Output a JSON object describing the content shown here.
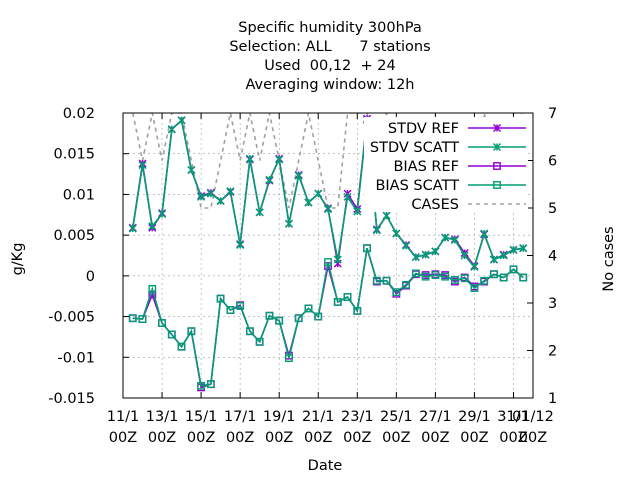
{
  "chart_data": {
    "type": "line",
    "title": [
      "Specific humidity 300hPa",
      "Selection: ALL      7 stations",
      "Used  00,12  + 24",
      "Averaging window: 12h"
    ],
    "xlabel": "Date",
    "ylabel": "g/Kg",
    "y2label": "No cases",
    "xlim": [
      0,
      42
    ],
    "ylim": [
      -0.015,
      0.02
    ],
    "y2lim": [
      1,
      7
    ],
    "yticks": [
      "-0.015",
      "-0.01",
      "-0.005",
      "0",
      "0.005",
      "0.01",
      "0.015",
      "0.02"
    ],
    "y2ticks": [
      "1",
      "2",
      "3",
      "4",
      "5",
      "6",
      "7"
    ],
    "xticks": [
      {
        "x": 0,
        "line1": "11/1",
        "line2": "00Z"
      },
      {
        "x": 4,
        "line1": "13/1",
        "line2": "00Z"
      },
      {
        "x": 8,
        "line1": "15/1",
        "line2": "00Z"
      },
      {
        "x": 12,
        "line1": "17/1",
        "line2": "00Z"
      },
      {
        "x": 16,
        "line1": "19/1",
        "line2": "00Z"
      },
      {
        "x": 20,
        "line1": "21/1",
        "line2": "00Z"
      },
      {
        "x": 24,
        "line1": "23/1",
        "line2": "00Z"
      },
      {
        "x": 28,
        "line1": "25/1",
        "line2": "00Z"
      },
      {
        "x": 32,
        "line1": "27/1",
        "line2": "00Z"
      },
      {
        "x": 36,
        "line1": "29/1",
        "line2": "00Z"
      },
      {
        "x": 40,
        "line1": "31/1",
        "line2": "00Z"
      },
      {
        "x": 42,
        "line1": "01/12",
        "line2": "00Z"
      }
    ],
    "grid": true,
    "legend_position": "top-right",
    "x": [
      1,
      2,
      3,
      4,
      5,
      6,
      7,
      8,
      9,
      10,
      11,
      12,
      13,
      14,
      15,
      16,
      17,
      18,
      19,
      20,
      21,
      22,
      23,
      24,
      25,
      26,
      27,
      28,
      29,
      30,
      31,
      32,
      33,
      34,
      35,
      36,
      37,
      38,
      39,
      40,
      41
    ],
    "series": [
      {
        "name": "STDV REF",
        "axis": "y",
        "color": "#9400d3",
        "marker": "x",
        "dash": false,
        "values": [
          0.0059,
          0.0138,
          0.0059,
          0.0077,
          0.018,
          0.0191,
          0.013,
          0.0098,
          0.0102,
          0.0092,
          0.0103,
          0.0039,
          0.0143,
          0.0078,
          0.0117,
          0.0144,
          0.0064,
          0.0124,
          0.009,
          0.0101,
          0.0083,
          0.0015,
          0.0101,
          0.0082,
          0.0193,
          0.0057,
          0.0074,
          0.0052,
          0.0038,
          0.0023,
          0.0026,
          0.003,
          0.0047,
          0.0045,
          0.0028,
          0.0012,
          0.0051,
          0.002,
          0.0026,
          0.0032,
          0.0034
        ]
      },
      {
        "name": "STDV SCATT",
        "axis": "y",
        "color": "#009e73",
        "marker": "x",
        "dash": false,
        "values": [
          0.0058,
          0.0136,
          0.0061,
          0.0076,
          0.018,
          0.0191,
          0.013,
          0.0097,
          0.0101,
          0.0092,
          0.0104,
          0.0038,
          0.0144,
          0.0078,
          0.0118,
          0.0143,
          0.0064,
          0.0123,
          0.009,
          0.0101,
          0.0082,
          0.002,
          0.0097,
          0.0079,
          0.0191,
          0.0056,
          0.0074,
          0.0052,
          0.0037,
          0.0023,
          0.0026,
          0.003,
          0.0047,
          0.0044,
          0.0025,
          0.0011,
          0.0052,
          0.002,
          0.0025,
          0.0032,
          0.0034
        ]
      },
      {
        "name": "BIAS REF",
        "axis": "y",
        "color": "#9400d3",
        "marker": "square",
        "dash": false,
        "values": [
          -0.0052,
          -0.0053,
          -0.0023,
          -0.0058,
          -0.0072,
          -0.0087,
          -0.0068,
          -0.0137,
          -0.0133,
          -0.0028,
          -0.0042,
          -0.0036,
          -0.0068,
          -0.0081,
          -0.0049,
          -0.0055,
          -0.0098,
          -0.0052,
          -0.004,
          -0.005,
          0.0012,
          -0.0032,
          -0.0026,
          -0.0043,
          0.0034,
          -0.0007,
          -0.0006,
          -0.0022,
          -0.0012,
          0.0002,
          0.0001,
          0.0002,
          0.0001,
          -0.0007,
          -0.0002,
          -0.0013,
          -0.0007,
          0.0002,
          -0.0002,
          0.0008,
          -0.0002
        ]
      },
      {
        "name": "BIAS SCATT",
        "axis": "y",
        "color": "#009e73",
        "marker": "square",
        "dash": false,
        "values": [
          -0.0052,
          -0.0053,
          -0.0016,
          -0.0058,
          -0.0072,
          -0.0087,
          -0.0068,
          -0.0135,
          -0.0133,
          -0.0028,
          -0.0042,
          -0.0037,
          -0.0068,
          -0.0081,
          -0.0049,
          -0.0055,
          -0.0101,
          -0.0052,
          -0.004,
          -0.005,
          0.0017,
          -0.0032,
          -0.0026,
          -0.0043,
          0.0034,
          -0.0006,
          -0.0006,
          -0.002,
          -0.0011,
          0.0003,
          -0.0001,
          0.0001,
          -0.0001,
          -0.0005,
          -0.0003,
          -0.0015,
          -0.0006,
          0.0002,
          -0.0002,
          0.0008,
          -0.0002
        ]
      },
      {
        "name": "CASES",
        "axis": "y2",
        "color": "#a0a0a0",
        "marker": "none",
        "dash": true,
        "values": [
          7,
          6,
          7,
          6,
          7,
          7,
          6,
          5,
          5,
          6,
          7,
          6,
          7,
          6,
          7,
          6,
          5,
          6,
          7,
          6,
          5,
          5,
          7,
          7,
          7,
          6,
          7,
          6,
          6,
          6,
          6,
          6,
          6,
          6,
          6,
          5,
          7,
          6,
          6,
          7,
          7
        ]
      }
    ]
  }
}
